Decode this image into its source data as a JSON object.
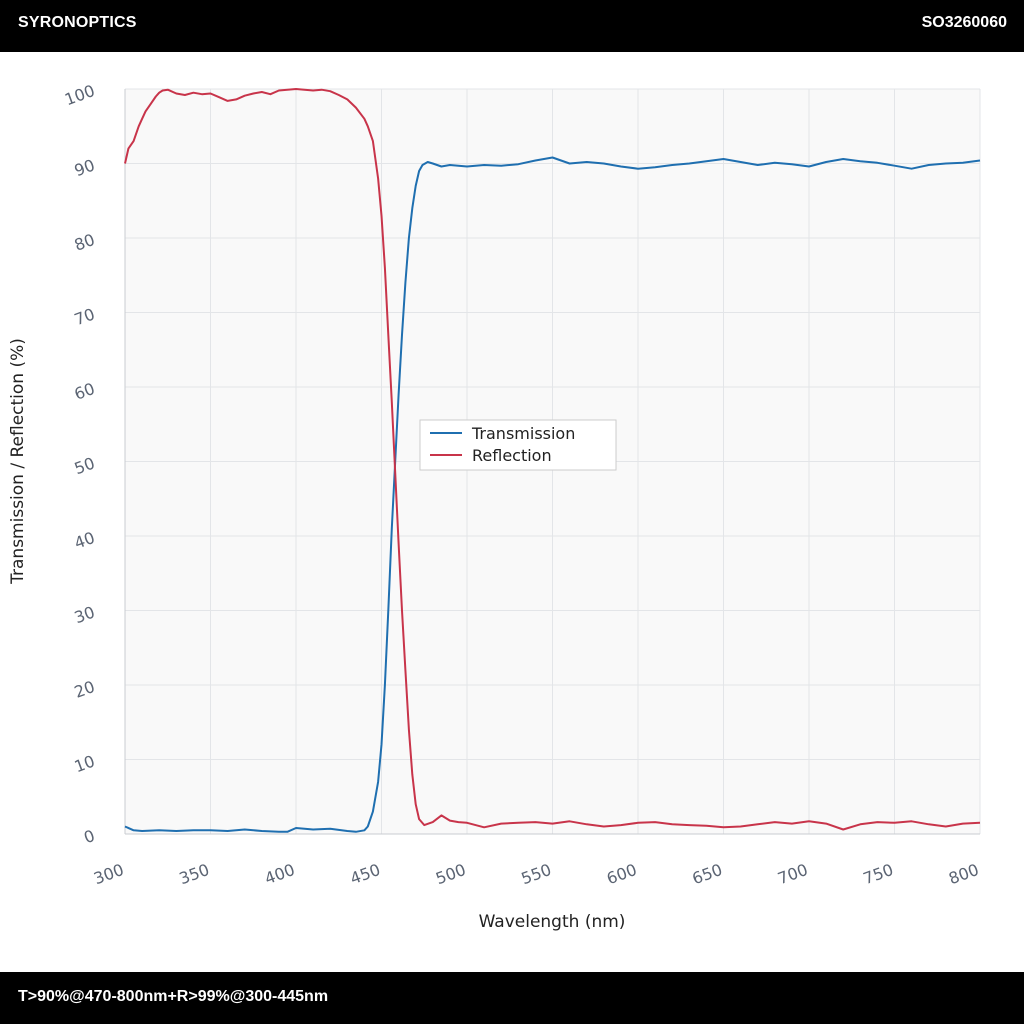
{
  "header": {
    "brand": "SYRONOPTICS",
    "code": "SO3260060"
  },
  "footer": {
    "spec": "T>90%@470-800nm+R>99%@300-445nm"
  },
  "chart_data": {
    "type": "line",
    "title": "",
    "xlabel": "Wavelength (nm)",
    "ylabel": "Transmission / Reflection (%)",
    "xlim": [
      300,
      800
    ],
    "ylim": [
      0,
      100
    ],
    "xticks": [
      "300",
      "350",
      "400",
      "450",
      "500",
      "550",
      "600",
      "650",
      "700",
      "750",
      "800"
    ],
    "yticks": [
      "0",
      "10",
      "20",
      "30",
      "40",
      "50",
      "60",
      "70",
      "80",
      "90",
      "100"
    ],
    "grid": true,
    "legend_position": "center",
    "series": [
      {
        "name": "Transmission",
        "color": "#1f6fb0",
        "x": [
          300,
          305,
          310,
          320,
          330,
          340,
          350,
          360,
          370,
          380,
          390,
          395,
          400,
          410,
          420,
          430,
          435,
          440,
          442,
          445,
          448,
          450,
          452,
          454,
          456,
          458,
          460,
          462,
          464,
          466,
          468,
          470,
          472,
          474,
          477,
          480,
          485,
          490,
          500,
          510,
          520,
          530,
          540,
          550,
          560,
          570,
          580,
          590,
          600,
          610,
          620,
          630,
          640,
          650,
          660,
          670,
          680,
          690,
          700,
          710,
          720,
          730,
          740,
          750,
          760,
          770,
          780,
          790,
          800
        ],
        "y": [
          1.0,
          0.5,
          0.4,
          0.5,
          0.4,
          0.5,
          0.5,
          0.4,
          0.6,
          0.4,
          0.3,
          0.3,
          0.8,
          0.6,
          0.7,
          0.4,
          0.3,
          0.5,
          1.0,
          3.0,
          7.0,
          12.0,
          20.0,
          30.0,
          41.0,
          50.0,
          59.0,
          67.0,
          74.0,
          80.0,
          84.0,
          87.0,
          89.0,
          89.8,
          90.2,
          90.0,
          89.6,
          89.8,
          89.6,
          89.8,
          89.7,
          89.9,
          90.4,
          90.8,
          90.0,
          90.2,
          90.0,
          89.6,
          89.3,
          89.5,
          89.8,
          90.0,
          90.3,
          90.6,
          90.2,
          89.8,
          90.1,
          89.9,
          89.6,
          90.2,
          90.6,
          90.3,
          90.1,
          89.7,
          89.3,
          89.8,
          90.0,
          90.1,
          90.4
        ]
      },
      {
        "name": "Reflection",
        "color": "#c8344a",
        "x": [
          300,
          302,
          305,
          308,
          310,
          312,
          315,
          318,
          320,
          322,
          325,
          330,
          335,
          340,
          345,
          350,
          355,
          360,
          365,
          370,
          375,
          380,
          385,
          390,
          395,
          400,
          405,
          410,
          415,
          420,
          425,
          430,
          435,
          440,
          442,
          445,
          448,
          450,
          452,
          454,
          456,
          458,
          460,
          462,
          464,
          466,
          468,
          470,
          472,
          475,
          480,
          485,
          490,
          495,
          500,
          510,
          520,
          530,
          540,
          550,
          560,
          570,
          580,
          590,
          600,
          610,
          620,
          630,
          640,
          650,
          660,
          670,
          680,
          690,
          700,
          710,
          720,
          730,
          740,
          750,
          760,
          770,
          780,
          790,
          800
        ],
        "y": [
          90.0,
          92.0,
          93.0,
          95.0,
          96.0,
          97.0,
          98.0,
          99.0,
          99.5,
          99.8,
          99.9,
          99.4,
          99.2,
          99.5,
          99.3,
          99.4,
          98.9,
          98.4,
          98.6,
          99.1,
          99.4,
          99.6,
          99.3,
          99.8,
          99.9,
          100.0,
          99.9,
          99.8,
          99.9,
          99.7,
          99.2,
          98.6,
          97.5,
          96.0,
          95.0,
          93.0,
          88.0,
          83.0,
          76.0,
          67.0,
          58.0,
          48.5,
          39.0,
          30.0,
          22.0,
          14.0,
          8.0,
          4.0,
          2.0,
          1.2,
          1.6,
          2.5,
          1.8,
          1.6,
          1.5,
          0.9,
          1.4,
          1.5,
          1.6,
          1.4,
          1.7,
          1.3,
          1.0,
          1.2,
          1.5,
          1.6,
          1.3,
          1.2,
          1.1,
          0.9,
          1.0,
          1.3,
          1.6,
          1.4,
          1.7,
          1.4,
          0.6,
          1.3,
          1.6,
          1.5,
          1.7,
          1.3,
          1.0,
          1.4,
          1.5
        ]
      }
    ]
  }
}
